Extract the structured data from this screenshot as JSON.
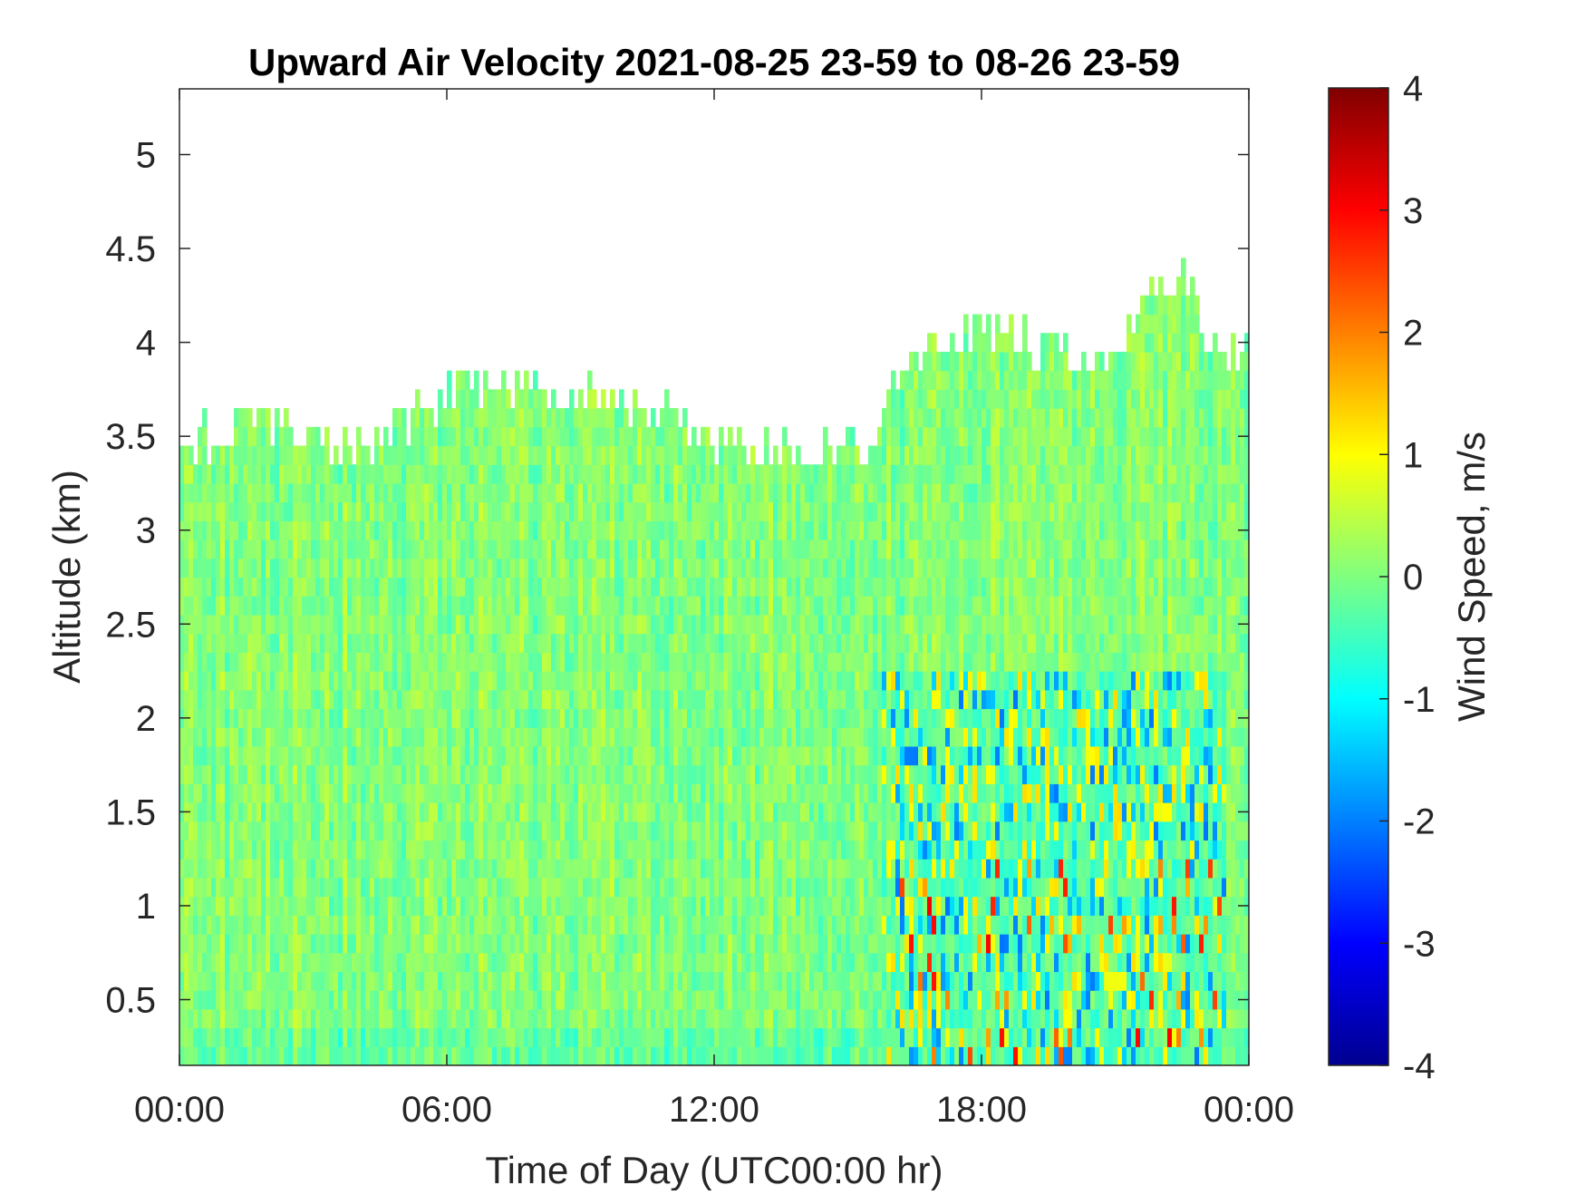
{
  "chart_data": {
    "type": "heatmap",
    "title": "Upward Air Velocity 2021-08-25 23-59 to 08-26 23-59",
    "xlabel": "Time of Day (UTC00:00 hr)",
    "ylabel": "Altitude (km)",
    "colorbar_label": "Wind Speed, m/s",
    "x_range_hours": [
      0,
      24
    ],
    "y_range_km": [
      0.15,
      5.35
    ],
    "x_ticks": [
      {
        "value": 0,
        "label": "00:00"
      },
      {
        "value": 6,
        "label": "06:00"
      },
      {
        "value": 12,
        "label": "12:00"
      },
      {
        "value": 18,
        "label": "18:00"
      },
      {
        "value": 24,
        "label": "00:00"
      }
    ],
    "y_ticks": [
      {
        "value": 0.5,
        "label": "0.5"
      },
      {
        "value": 1,
        "label": "1"
      },
      {
        "value": 1.5,
        "label": "1.5"
      },
      {
        "value": 2,
        "label": "2"
      },
      {
        "value": 2.5,
        "label": "2.5"
      },
      {
        "value": 3,
        "label": "3"
      },
      {
        "value": 3.5,
        "label": "3.5"
      },
      {
        "value": 4,
        "label": "4"
      },
      {
        "value": 4.5,
        "label": "4.5"
      },
      {
        "value": 5,
        "label": "5"
      }
    ],
    "colorbar_range": [
      -4,
      4
    ],
    "colorbar_ticks": [
      {
        "value": 4,
        "label": "4"
      },
      {
        "value": 3,
        "label": "3"
      },
      {
        "value": 2,
        "label": "2"
      },
      {
        "value": 1,
        "label": "1"
      },
      {
        "value": 0,
        "label": "0"
      },
      {
        "value": -1,
        "label": "-1"
      },
      {
        "value": -2,
        "label": "-2"
      },
      {
        "value": -3,
        "label": "-3"
      },
      {
        "value": -4,
        "label": "-4"
      }
    ],
    "colormap": "jet",
    "grid": false,
    "data_top_km": [
      {
        "hour": 0.0,
        "top_km": 3.35
      },
      {
        "hour": 0.7,
        "top_km": 3.45
      },
      {
        "hour": 2.2,
        "top_km": 3.55
      },
      {
        "hour": 3.5,
        "top_km": 3.35
      },
      {
        "hour": 4.5,
        "top_km": 3.45
      },
      {
        "hour": 6.0,
        "top_km": 3.65
      },
      {
        "hour": 7.5,
        "top_km": 3.75
      },
      {
        "hour": 9.0,
        "top_km": 3.65
      },
      {
        "hour": 11.0,
        "top_km": 3.55
      },
      {
        "hour": 12.0,
        "top_km": 3.45
      },
      {
        "hour": 13.5,
        "top_km": 3.35
      },
      {
        "hour": 15.5,
        "top_km": 3.4
      },
      {
        "hour": 16.0,
        "top_km": 3.8
      },
      {
        "hour": 17.0,
        "top_km": 4.0
      },
      {
        "hour": 19.0,
        "top_km": 3.95
      },
      {
        "hour": 21.0,
        "top_km": 3.9
      },
      {
        "hour": 22.0,
        "top_km": 4.2
      },
      {
        "hour": 22.5,
        "top_km": 4.4
      },
      {
        "hour": 23.0,
        "top_km": 4.0
      },
      {
        "hour": 24.0,
        "top_km": 3.9
      }
    ],
    "convective_region": {
      "hours": [
        15.8,
        23.5
      ],
      "altitude_km": [
        0.15,
        2.2
      ],
      "note_values_m_s": [
        -2,
        3
      ]
    },
    "background_value_m_s": 0.0
  }
}
